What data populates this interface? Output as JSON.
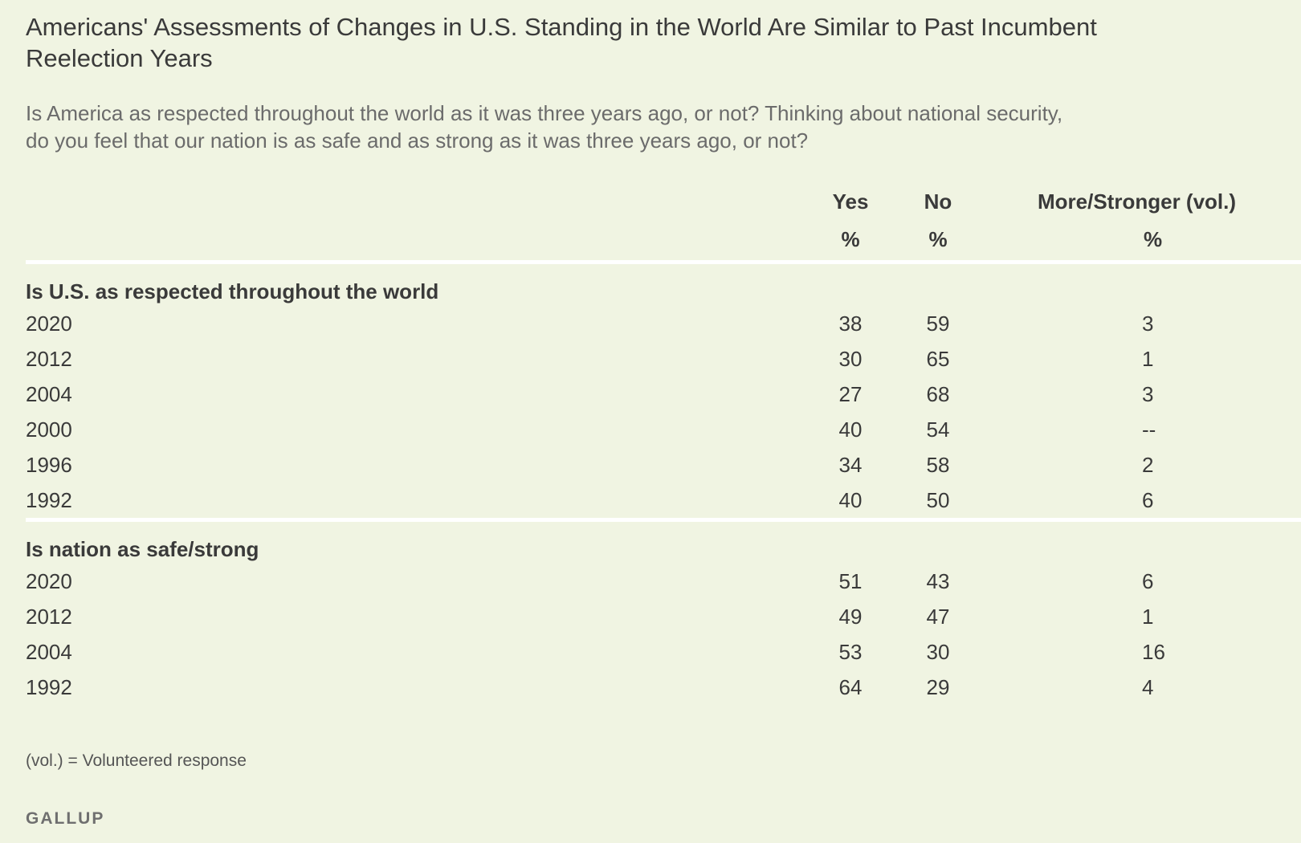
{
  "title": "Americans' Assessments of Changes in U.S. Standing in the World Are Similar to Past Incumbent Reelection Years",
  "subtitle": "Is America as respected throughout the world as it was three years ago, or not? Thinking about national security, do you feel that our nation is as safe and as strong as it was three years ago, or not?",
  "columns": {
    "yes": "Yes",
    "no": "No",
    "more": "More/Stronger (vol.)",
    "unit": "%"
  },
  "chart_data": {
    "type": "table",
    "columns": [
      "Yes",
      "No",
      "More/Stronger (vol.)"
    ],
    "sections": [
      {
        "label": "Is U.S. as respected throughout the world",
        "rows": [
          {
            "year": "2020",
            "yes": "38",
            "no": "59",
            "more": "3"
          },
          {
            "year": "2012",
            "yes": "30",
            "no": "65",
            "more": "1"
          },
          {
            "year": "2004",
            "yes": "27",
            "no": "68",
            "more": "3"
          },
          {
            "year": "2000",
            "yes": "40",
            "no": "54",
            "more": "--"
          },
          {
            "year": "1996",
            "yes": "34",
            "no": "58",
            "more": "2"
          },
          {
            "year": "1992",
            "yes": "40",
            "no": "50",
            "more": "6"
          }
        ]
      },
      {
        "label": "Is nation as safe/strong",
        "rows": [
          {
            "year": "2020",
            "yes": "51",
            "no": "43",
            "more": "6"
          },
          {
            "year": "2012",
            "yes": "49",
            "no": "47",
            "more": "1"
          },
          {
            "year": "2004",
            "yes": "53",
            "no": "30",
            "more": "16"
          },
          {
            "year": "1992",
            "yes": "64",
            "no": "29",
            "more": "4"
          }
        ]
      }
    ]
  },
  "note": "(vol.) = Volunteered response",
  "brand": "GALLUP"
}
